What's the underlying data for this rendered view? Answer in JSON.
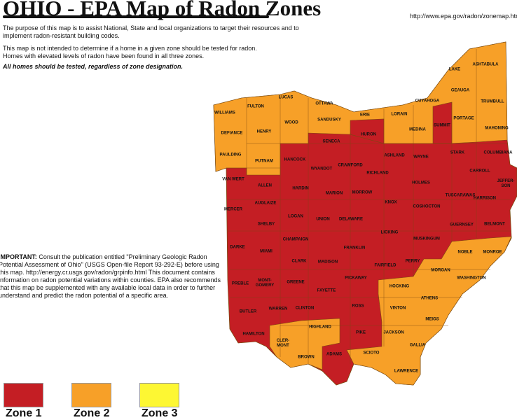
{
  "header": {
    "title": "OHIO - EPA Map of Radon Zones",
    "url": "http://www.epa.gov/radon/zonemap.htm"
  },
  "intro": {
    "purpose": "The purpose of this map is to assist National, State and local organizations to target their resources and to implement radon-resistant building codes.",
    "not_intended": "This map is not intended to determine if a home in a given zone should be tested for radon.",
    "elevated": "Homes with elevated levels of radon have been found in all three zones.",
    "emphasis": "All homes should be tested, regardless of zone designation."
  },
  "important": {
    "label": "IMPORTANT:",
    "text": " Consult the publication entitled \"Preliminary Geologic Radon Potential Assessment of Ohio\" (USGS Open-file Report 93-292-E) before using this map. http://energy.cr.usgs.gov/radon/grpinfo.html  This document contains information on radon potential variations within counties. EPA also recommends that this map be supplemented with any available local data in order to further understand and predict the radon potential of a specific area."
  },
  "zones": {
    "1": {
      "label": "Zone 1",
      "color": "#c41e24"
    },
    "2": {
      "label": "Zone 2",
      "color": "#f7a028"
    },
    "3": {
      "label": "Zone 3",
      "color": "#fdf733"
    }
  },
  "counties": [
    {
      "name": "WILLIAMS",
      "zone": 2
    },
    {
      "name": "FULTON",
      "zone": 2
    },
    {
      "name": "LUCAS",
      "zone": 2
    },
    {
      "name": "OTTAWA",
      "zone": 2
    },
    {
      "name": "WOOD",
      "zone": 2
    },
    {
      "name": "SANDUSKY",
      "zone": 2
    },
    {
      "name": "ERIE",
      "zone": 2
    },
    {
      "name": "LORAIN",
      "zone": 2
    },
    {
      "name": "CUYAHOGA",
      "zone": 2
    },
    {
      "name": "LAKE",
      "zone": 2
    },
    {
      "name": "ASHTABULA",
      "zone": 2
    },
    {
      "name": "GEAUGA",
      "zone": 2
    },
    {
      "name": "TRUMBULL",
      "zone": 2
    },
    {
      "name": "PORTAGE",
      "zone": 2
    },
    {
      "name": "MAHONING",
      "zone": 2
    },
    {
      "name": "MEDINA",
      "zone": 2
    },
    {
      "name": "DEFIANCE",
      "zone": 2
    },
    {
      "name": "HENRY",
      "zone": 2
    },
    {
      "name": "PAULDING",
      "zone": 2
    },
    {
      "name": "PUTNAM",
      "zone": 2
    },
    {
      "name": "NOBLE",
      "zone": 2
    },
    {
      "name": "MONROE",
      "zone": 2
    },
    {
      "name": "MORGAN",
      "zone": 2
    },
    {
      "name": "WASHINGTON",
      "zone": 2
    },
    {
      "name": "HOCKING",
      "zone": 2
    },
    {
      "name": "ATHENS",
      "zone": 2
    },
    {
      "name": "VINTON",
      "zone": 2
    },
    {
      "name": "MEIGS",
      "zone": 2
    },
    {
      "name": "HIGHLAND",
      "zone": 2
    },
    {
      "name": "JACKSON",
      "zone": 2
    },
    {
      "name": "GALLIA",
      "zone": 2
    },
    {
      "name": "CLER-\nMONT",
      "zone": 2
    },
    {
      "name": "BROWN",
      "zone": 2
    },
    {
      "name": "SCIOTO",
      "zone": 2
    },
    {
      "name": "LAWRENCE",
      "zone": 2
    },
    {
      "name": "SUMMIT",
      "zone": 1
    },
    {
      "name": "HURON",
      "zone": 1
    },
    {
      "name": "SENECA",
      "zone": 1
    },
    {
      "name": "HANCOCK",
      "zone": 1
    },
    {
      "name": "WYANDOT",
      "zone": 1
    },
    {
      "name": "CRAWFORD",
      "zone": 1
    },
    {
      "name": "ASHLAND",
      "zone": 1
    },
    {
      "name": "WAYNE",
      "zone": 1
    },
    {
      "name": "STARK",
      "zone": 1
    },
    {
      "name": "COLUMBIANA",
      "zone": 1
    },
    {
      "name": "RICHLAND",
      "zone": 1
    },
    {
      "name": "CARROLL",
      "zone": 1
    },
    {
      "name": "JEFFER-\nSON",
      "zone": 1
    },
    {
      "name": "VAN WERT",
      "zone": 1
    },
    {
      "name": "ALLEN",
      "zone": 1
    },
    {
      "name": "HARDIN",
      "zone": 1
    },
    {
      "name": "MARION",
      "zone": 1
    },
    {
      "name": "MORROW",
      "zone": 1
    },
    {
      "name": "HOLMES",
      "zone": 1
    },
    {
      "name": "TUSCARAWAS",
      "zone": 1
    },
    {
      "name": "HARRISON",
      "zone": 1
    },
    {
      "name": "KNOX",
      "zone": 1
    },
    {
      "name": "COSHOCTON",
      "zone": 1
    },
    {
      "name": "MERCER",
      "zone": 1
    },
    {
      "name": "AUGLAIZE",
      "zone": 1
    },
    {
      "name": "LOGAN",
      "zone": 1
    },
    {
      "name": "UNION",
      "zone": 1
    },
    {
      "name": "DELAWARE",
      "zone": 1
    },
    {
      "name": "BELMONT",
      "zone": 1
    },
    {
      "name": "GUERNSEY",
      "zone": 1
    },
    {
      "name": "SHELBY",
      "zone": 1
    },
    {
      "name": "LICKING",
      "zone": 1
    },
    {
      "name": "CHAMPAIGN",
      "zone": 1
    },
    {
      "name": "MUSKINGUM",
      "zone": 1
    },
    {
      "name": "DARKE",
      "zone": 1
    },
    {
      "name": "MIAMI",
      "zone": 1
    },
    {
      "name": "FRANKLIN",
      "zone": 1
    },
    {
      "name": "CLARK",
      "zone": 1
    },
    {
      "name": "MADISON",
      "zone": 1
    },
    {
      "name": "PERRY",
      "zone": 1
    },
    {
      "name": "FAIRFIELD",
      "zone": 1
    },
    {
      "name": "PICKAWAY",
      "zone": 1
    },
    {
      "name": "PREBLE",
      "zone": 1
    },
    {
      "name": "MONT-\nGOMERY",
      "zone": 1
    },
    {
      "name": "GREENE",
      "zone": 1
    },
    {
      "name": "FAYETTE",
      "zone": 1
    },
    {
      "name": "ROSS",
      "zone": 1
    },
    {
      "name": "BUTLER",
      "zone": 1
    },
    {
      "name": "WARREN",
      "zone": 1
    },
    {
      "name": "CLINTON",
      "zone": 1
    },
    {
      "name": "HAMILTON",
      "zone": 1
    },
    {
      "name": "PIKE",
      "zone": 1
    },
    {
      "name": "ADAMS",
      "zone": 1
    }
  ]
}
